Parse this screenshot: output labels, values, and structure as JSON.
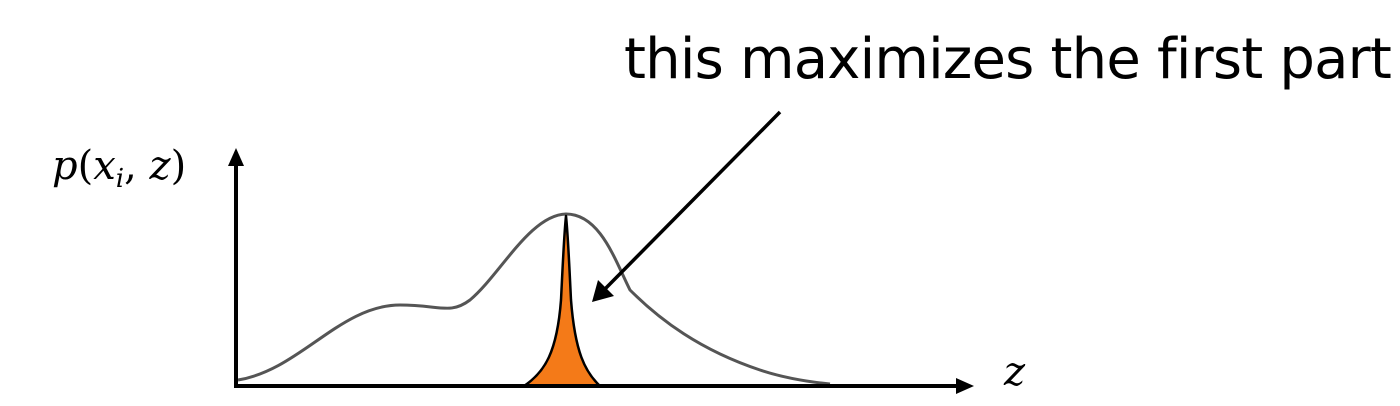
{
  "annotation": {
    "text": "this maximizes the first part"
  },
  "y_label": {
    "func": "p",
    "open": "(",
    "var1": "x",
    "sub": "i",
    "sep": ", ",
    "var2": "z",
    "close": ")"
  },
  "x_label": "z",
  "colors": {
    "axis": "#000000",
    "curve": "#555555",
    "spike_fill": "#f47a18",
    "spike_outline": "#000000",
    "arrow": "#000000"
  }
}
